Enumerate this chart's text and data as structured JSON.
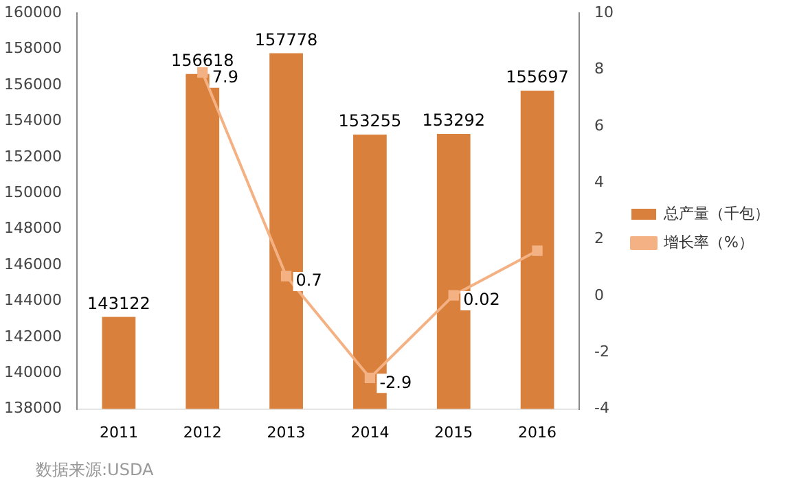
{
  "chart_data": {
    "type": "bar",
    "categories": [
      "2011",
      "2012",
      "2013",
      "2014",
      "2015",
      "2016"
    ],
    "series": [
      {
        "name": "总产量（千包）",
        "color": "#d9813c",
        "values": [
          143122,
          156618,
          157778,
          153255,
          153292,
          155697
        ],
        "value_labels": [
          "143122",
          "156618",
          "157778",
          "153255",
          "153292",
          "155697"
        ]
      },
      {
        "name": "增长率（%）",
        "type": "line",
        "axis": "y2",
        "color": "#f4b183",
        "values": [
          null,
          7.9,
          0.7,
          -2.9,
          0.02,
          1.6
        ],
        "value_labels": [
          null,
          "7.9",
          "0.7",
          "-2.9",
          "0.02",
          null
        ]
      }
    ],
    "ylim": [
      138000,
      160000
    ],
    "yticks": [
      138000,
      140000,
      142000,
      144000,
      146000,
      148000,
      150000,
      152000,
      154000,
      156000,
      158000,
      160000
    ],
    "y2lim": [
      -4,
      10
    ],
    "y2ticks": [
      -4,
      -2,
      0,
      2,
      4,
      6,
      8,
      10
    ],
    "legend": "right",
    "marker": "square",
    "grid": false,
    "annotations": [
      "数据来源:USDA"
    ]
  }
}
